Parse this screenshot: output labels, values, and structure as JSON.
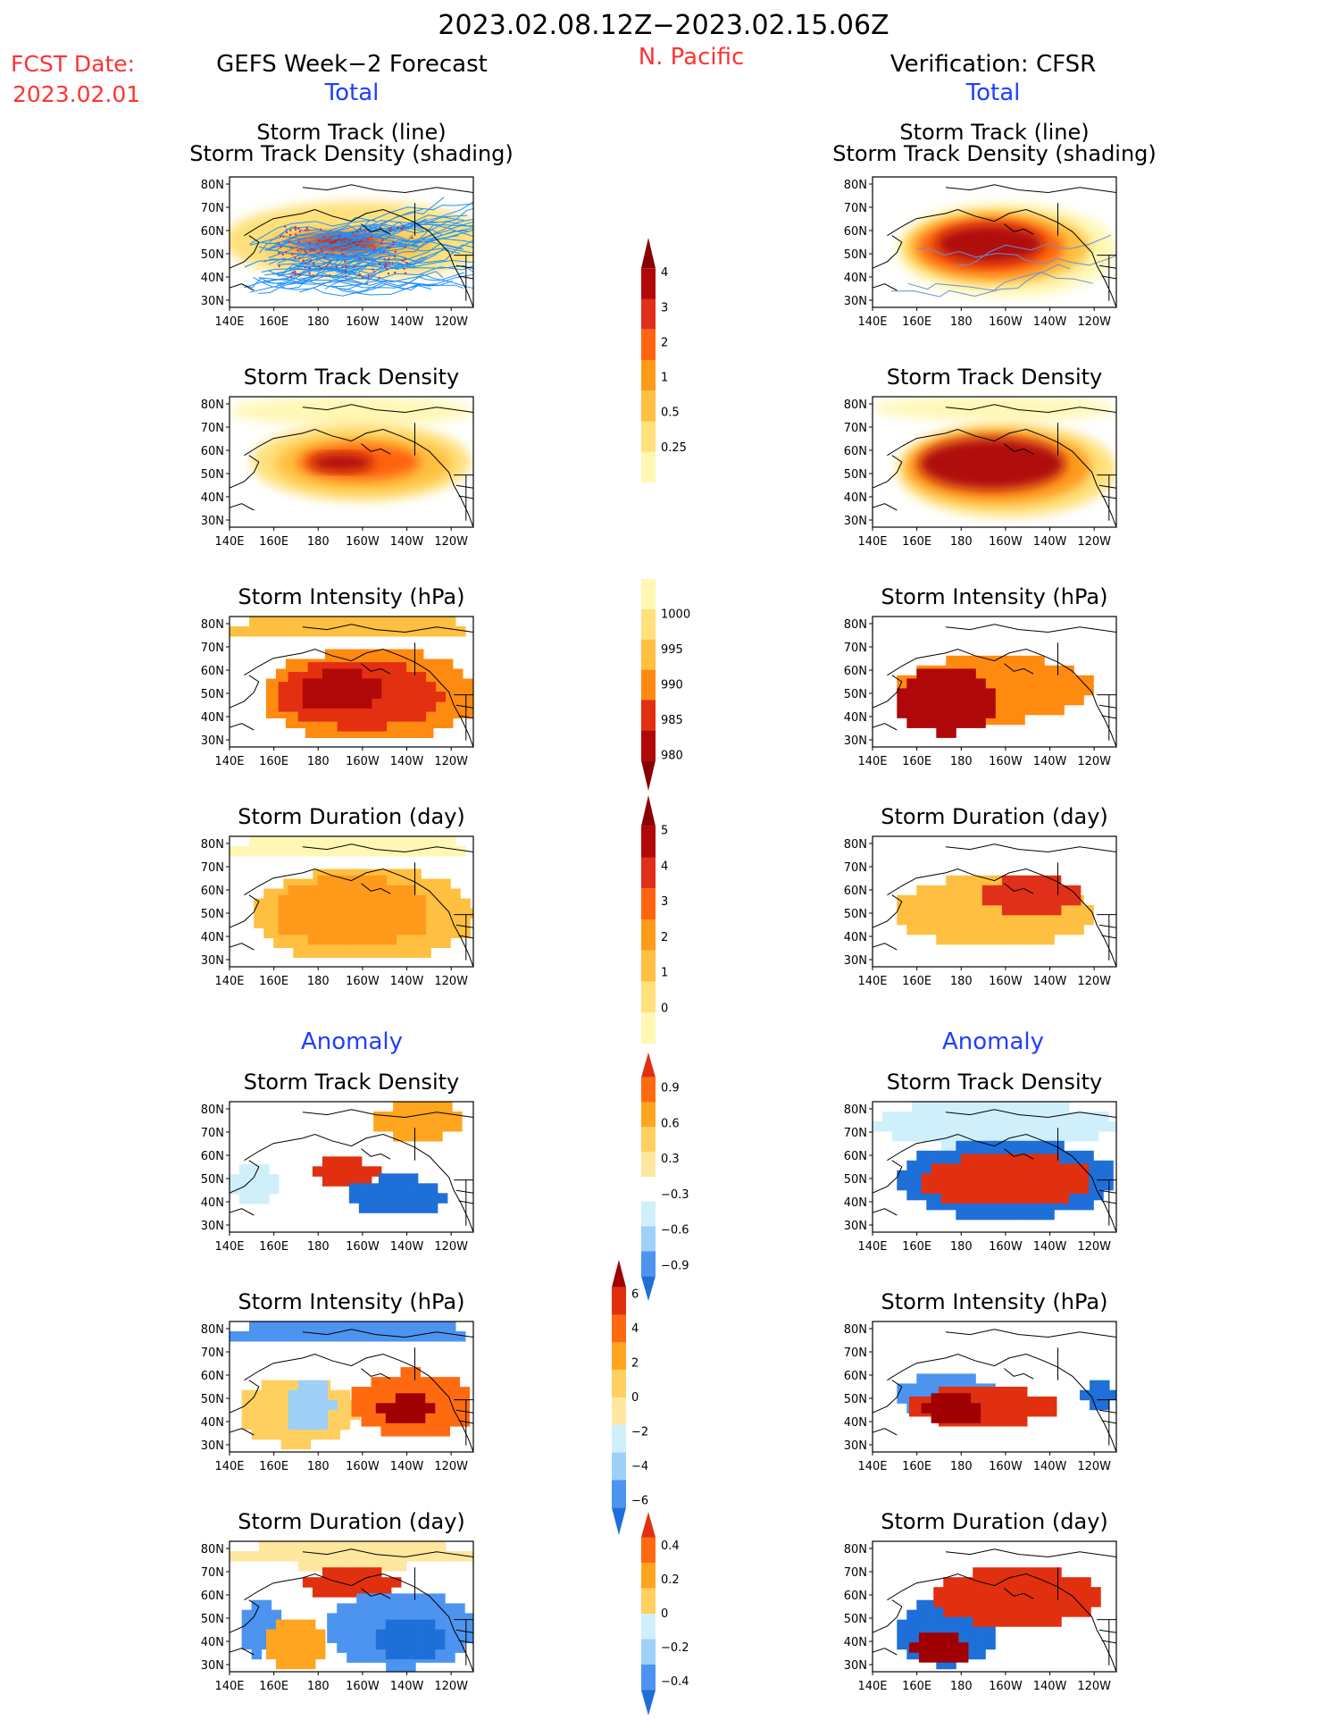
{
  "header": {
    "period": "2023.02.08.12Z−2023.02.15.06Z",
    "region": "N. Pacific",
    "fcst_label": "FCST Date:",
    "fcst_date": "2023.02.01",
    "left_title": "GEFS Week−2 Forecast",
    "right_title": "Verification: CFSR",
    "total_label": "Total",
    "anomaly_label": "Anomaly"
  },
  "colors": {
    "red_text": "#ff3333",
    "blue_text": "#1f3fff",
    "track_line": "#1e90ff",
    "land_line": "#000000"
  },
  "axes": {
    "x_ticks": [
      "140E",
      "160E",
      "180",
      "160W",
      "140W",
      "120W"
    ],
    "y_ticks": [
      "80N",
      "70N",
      "60N",
      "50N",
      "40N",
      "30N"
    ]
  },
  "panels": {
    "track_line": [
      "Storm Track (line)",
      "Storm Track Density (shading)"
    ],
    "density": "Storm Track Density",
    "intensity": "Storm Intensity (hPa)",
    "duration": "Storm Duration (day)"
  },
  "chart_data": [
    {
      "type": "heatmap",
      "section": "Total",
      "source": "GEFS",
      "title": "Storm Track (line) / Storm Track Density (shading)",
      "levels": [
        0.25,
        0.5,
        1,
        2,
        3,
        4
      ],
      "peak": 4.3,
      "has_tracks": true
    },
    {
      "type": "heatmap",
      "section": "Total",
      "source": "GEFS",
      "title": "Storm Track Density",
      "levels": [
        0.25,
        0.5,
        1,
        2,
        3,
        4
      ],
      "peak": 4.2
    },
    {
      "type": "heatmap",
      "section": "Total",
      "source": "GEFS",
      "title": "Storm Intensity (hPa)",
      "levels": [
        1000,
        995,
        990,
        985,
        980
      ],
      "min": 978
    },
    {
      "type": "heatmap",
      "section": "Total",
      "source": "GEFS",
      "title": "Storm Duration (day)",
      "levels": [
        0,
        1,
        2,
        3,
        4,
        5
      ],
      "peak": 3.4
    },
    {
      "type": "heatmap",
      "section": "Anomaly",
      "source": "GEFS",
      "title": "Storm Track Density",
      "levels": [
        -0.9,
        -0.6,
        -0.3,
        0.3,
        0.6,
        0.9
      ]
    },
    {
      "type": "heatmap",
      "section": "Anomaly",
      "source": "GEFS",
      "title": "Storm Intensity (hPa)",
      "levels": [
        -6,
        -4,
        -2,
        0,
        2,
        4,
        6
      ]
    },
    {
      "type": "heatmap",
      "section": "Anomaly",
      "source": "GEFS",
      "title": "Storm Duration (day)",
      "levels": [
        -0.4,
        -0.2,
        0,
        0.2,
        0.4
      ]
    },
    {
      "type": "heatmap",
      "section": "Total",
      "source": "CFSR",
      "title": "Storm Track (line) / Storm Track Density (shading)",
      "levels": [
        0.25,
        0.5,
        1,
        2,
        3,
        4
      ],
      "peak": 4.5,
      "has_tracks": true
    },
    {
      "type": "heatmap",
      "section": "Total",
      "source": "CFSR",
      "title": "Storm Track Density",
      "levels": [
        0.25,
        0.5,
        1,
        2,
        3,
        4
      ],
      "peak": 4.5
    },
    {
      "type": "heatmap",
      "section": "Total",
      "source": "CFSR",
      "title": "Storm Intensity (hPa)",
      "levels": [
        1000,
        995,
        990,
        985,
        980
      ],
      "min": 978
    },
    {
      "type": "heatmap",
      "section": "Total",
      "source": "CFSR",
      "title": "Storm Duration (day)",
      "levels": [
        0,
        1,
        2,
        3,
        4,
        5
      ],
      "peak": 5.2
    },
    {
      "type": "heatmap",
      "section": "Anomaly",
      "source": "CFSR",
      "title": "Storm Track Density",
      "levels": [
        -0.9,
        -0.6,
        -0.3,
        0.3,
        0.6,
        0.9
      ]
    },
    {
      "type": "heatmap",
      "section": "Anomaly",
      "source": "CFSR",
      "title": "Storm Intensity (hPa)",
      "levels": [
        -6,
        -4,
        -2,
        0,
        2,
        4,
        6
      ]
    },
    {
      "type": "heatmap",
      "section": "Anomaly",
      "source": "CFSR",
      "title": "Storm Duration (day)",
      "levels": [
        -0.4,
        -0.2,
        0,
        0.2,
        0.4
      ]
    }
  ],
  "colorbars": [
    {
      "id": "density",
      "labels": [
        "4",
        "3",
        "2",
        "1",
        "0.5",
        "0.25"
      ]
    },
    {
      "id": "intensity",
      "labels": [
        "1000",
        "995",
        "990",
        "985",
        "980"
      ]
    },
    {
      "id": "duration",
      "labels": [
        "5",
        "4",
        "3",
        "2",
        "1",
        "0"
      ]
    },
    {
      "id": "anom_density",
      "labels": [
        "0.9",
        "0.6",
        "0.3",
        "−0.3",
        "−0.6",
        "−0.9"
      ]
    },
    {
      "id": "anom_intensity",
      "labels": [
        "6",
        "4",
        "2",
        "0",
        "−2",
        "−4",
        "−6"
      ]
    },
    {
      "id": "anom_duration",
      "labels": [
        "0.4",
        "0.2",
        "0",
        "−0.2",
        "−0.4"
      ]
    }
  ]
}
